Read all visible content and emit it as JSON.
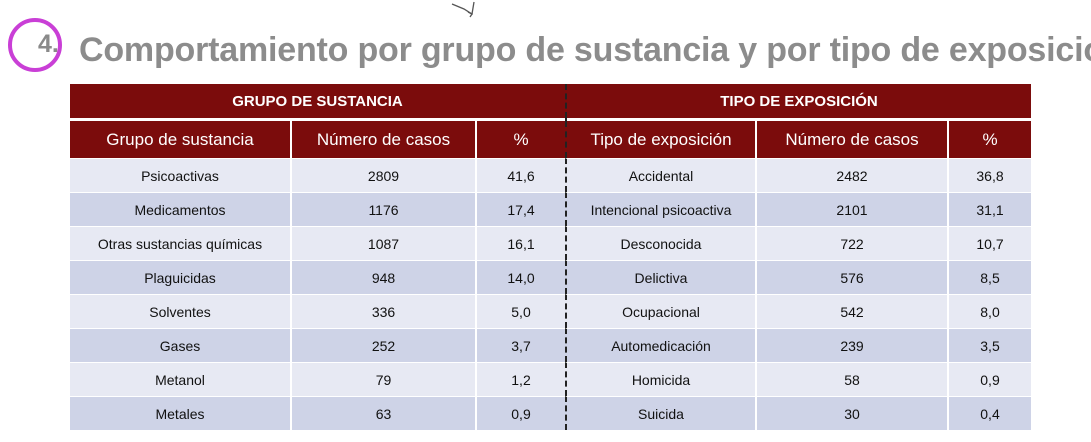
{
  "section_number": "4.",
  "title": "Comportamiento por grupo de sustancia y por tipo de exposición",
  "colors": {
    "header_bg": "#7b0c0c",
    "row_light": "#e7e9f3",
    "row_dark": "#ced3e7",
    "badge": "#c93fd6",
    "title": "#8c8c8c"
  },
  "left_table": {
    "section_header": "GRUPO DE SUSTANCIA",
    "columns": [
      "Grupo de sustancia",
      "Número de casos",
      "%"
    ],
    "rows": [
      [
        "Psicoactivas",
        "2809",
        "41,6"
      ],
      [
        "Medicamentos",
        "1176",
        "17,4"
      ],
      [
        "Otras sustancias químicas",
        "1087",
        "16,1"
      ],
      [
        "Plaguicidas",
        "948",
        "14,0"
      ],
      [
        "Solventes",
        "336",
        "5,0"
      ],
      [
        "Gases",
        "252",
        "3,7"
      ],
      [
        "Metanol",
        "79",
        "1,2"
      ],
      [
        "Metales",
        "63",
        "0,9"
      ]
    ]
  },
  "right_table": {
    "section_header": "TIPO DE EXPOSICIÓN",
    "columns": [
      "Tipo de exposición",
      "Número de casos",
      "%"
    ],
    "rows": [
      [
        "Accidental",
        "2482",
        "36,8"
      ],
      [
        "Intencional psicoactiva",
        "2101",
        "31,1"
      ],
      [
        "Desconocida",
        "722",
        "10,7"
      ],
      [
        "Delictiva",
        "576",
        "8,5"
      ],
      [
        "Ocupacional",
        "542",
        "8,0"
      ],
      [
        "Automedicación",
        "239",
        "3,5"
      ],
      [
        "Homicida",
        "58",
        "0,9"
      ],
      [
        "Suicida",
        "30",
        "0,4"
      ]
    ]
  }
}
